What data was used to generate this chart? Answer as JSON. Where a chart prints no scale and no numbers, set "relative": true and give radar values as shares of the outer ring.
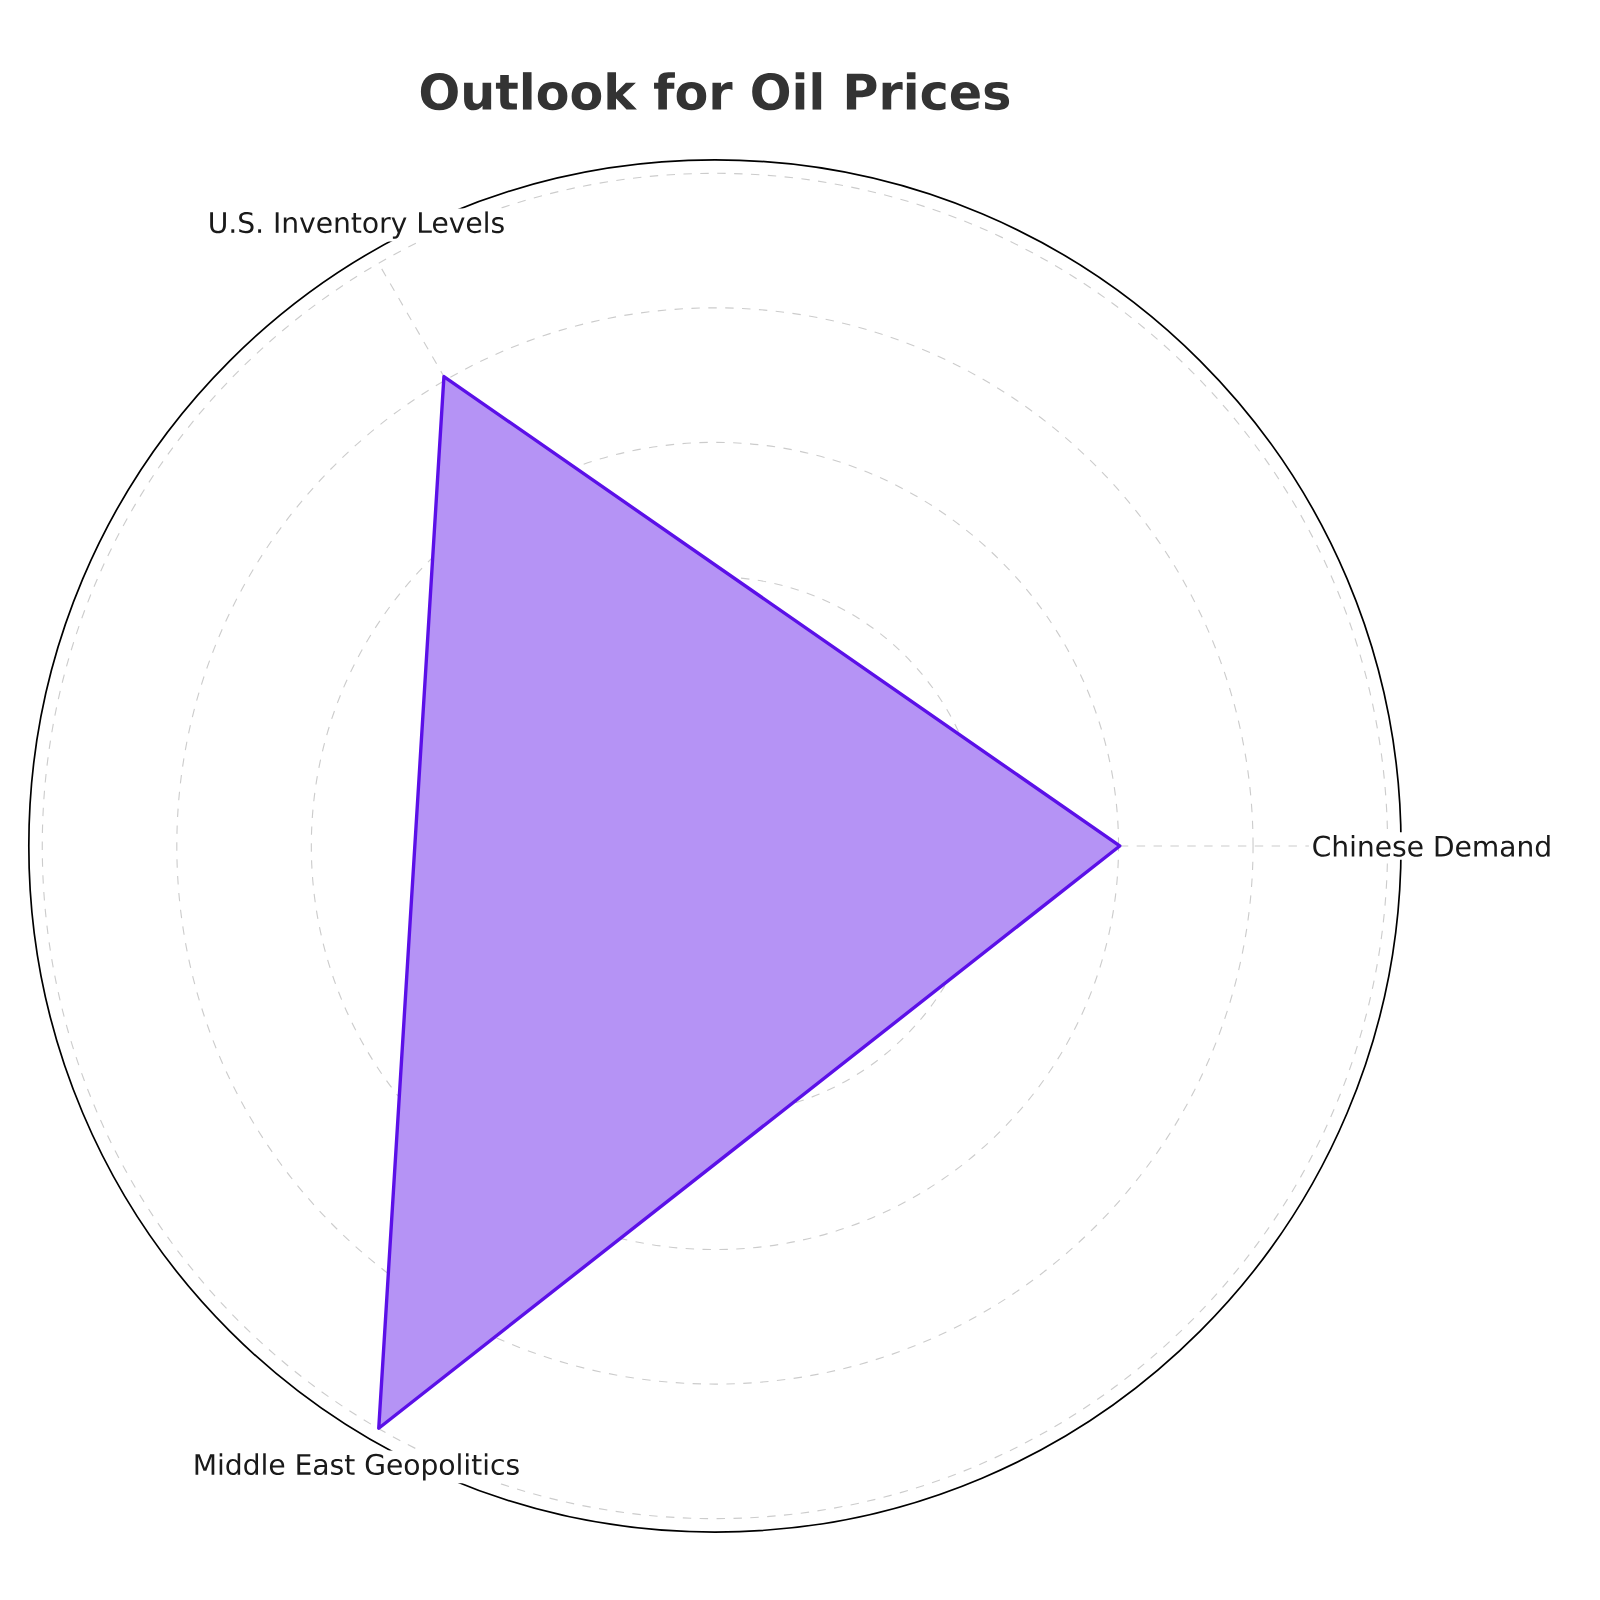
{
  "chart_data": {
    "type": "radar",
    "title": "Outlook for Oil Prices",
    "categories": [
      "Chinese Demand",
      "Middle East Geopolitics",
      "U.S. Inventory Levels"
    ],
    "relative": true,
    "grid": true,
    "series": [
      {
        "color": "#5b10e8",
        "values": [
          0.59,
          0.98,
          0.79
        ]
      }
    ]
  }
}
